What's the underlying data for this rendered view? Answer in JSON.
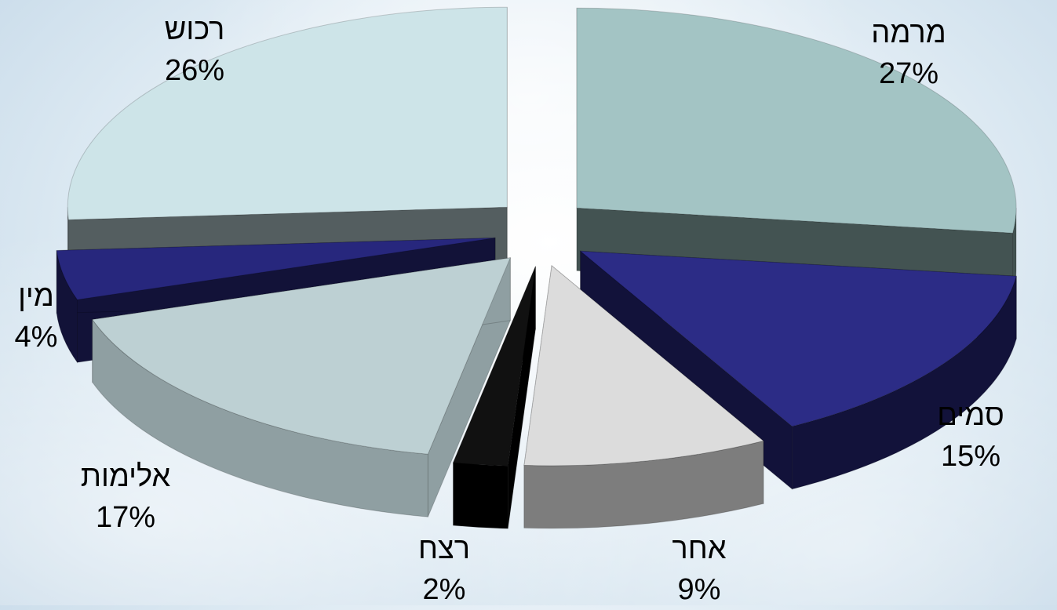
{
  "chart_data": {
    "type": "pie",
    "style": "3d-exploded",
    "slices": [
      {
        "label": "מרמה",
        "value": 27,
        "value_label": "27%",
        "top_color": "#a3c4c4",
        "side_color": "#435352"
      },
      {
        "label": "סמים",
        "value": 15,
        "value_label": "15%",
        "top_color": "#2c2c86",
        "side_color": "#12123a"
      },
      {
        "label": "אחר",
        "value": 9,
        "value_label": "9%",
        "top_color": "#dcdcdc",
        "side_color": "#7d7d7d"
      },
      {
        "label": "רצח",
        "value": 2,
        "value_label": "2%",
        "top_color": "#111111",
        "side_color": "#000000"
      },
      {
        "label": "אלימות",
        "value": 17,
        "value_label": "17%",
        "top_color": "#bdd0d3",
        "side_color": "#8f9fa2"
      },
      {
        "label": "מין",
        "value": 4,
        "value_label": "4%",
        "top_color": "#27277d",
        "side_color": "#121238"
      },
      {
        "label": "רכוש",
        "value": 26,
        "value_label": "26%",
        "top_color": "#cde4e8",
        "side_color": "#545e60"
      }
    ]
  }
}
